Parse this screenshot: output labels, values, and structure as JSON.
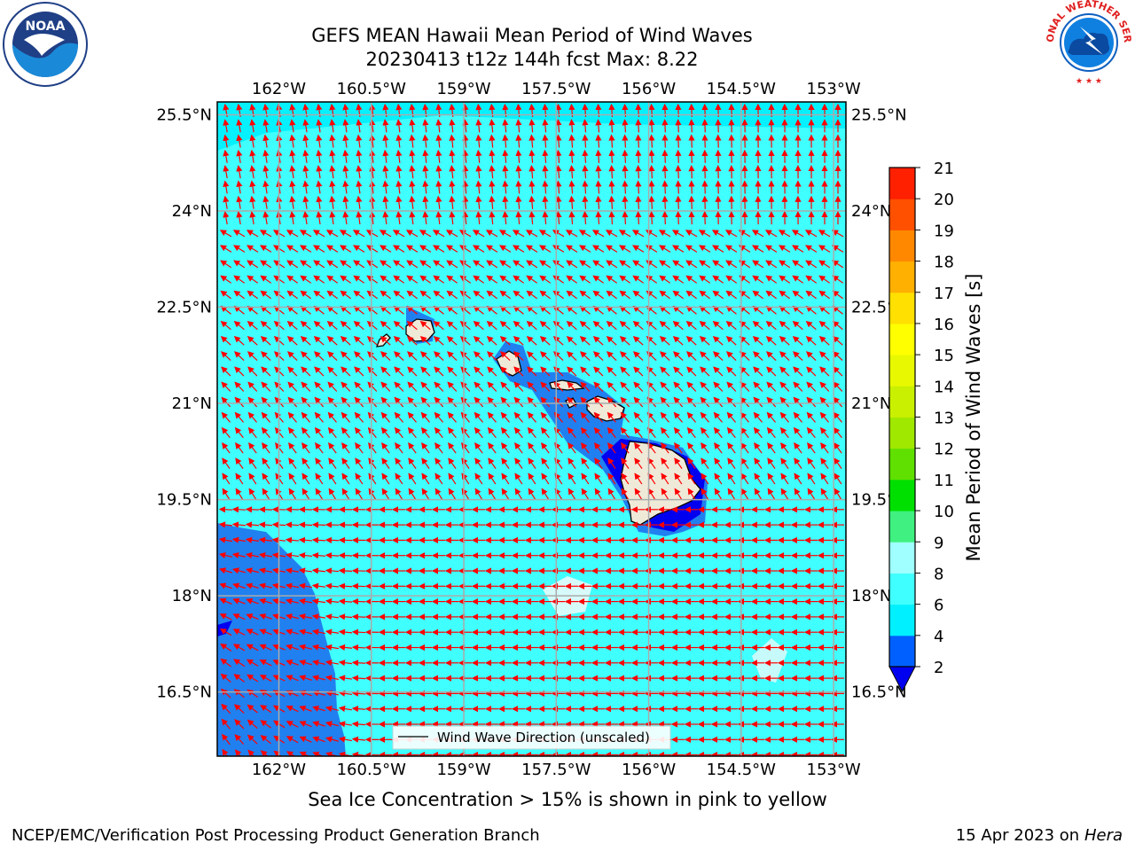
{
  "title_line1": "GEFS MEAN Hawaii Mean Period of Wind Waves",
  "title_line2": "20230413 t12z 144h fcst   Max: 8.22",
  "subtitle": "Sea Ice Concentration > 15% is shown in pink to yellow",
  "footer_left": "NCEP/EMC/Verification Post Processing Product Generation Branch",
  "footer_right_date": "15 Apr 2023 on ",
  "footer_right_host": "Hera",
  "legend_label": "Wind Wave Direction (unscaled)",
  "colorbar_label": "Mean Period of Wind Waves [s]",
  "logos": {
    "left": "NOAA",
    "left_ring_text": "NATIONAL OCEANIC AND ATMOSPHERIC ADMINISTRATION · U.S. DEPARTMENT OF COMMERCE",
    "right_ring_text": "NATIONAL WEATHER SERVICE"
  },
  "map": {
    "lon_labels": [
      "162°W",
      "160.5°W",
      "159°W",
      "157.5°W",
      "156°W",
      "154.5°W",
      "153°W"
    ],
    "lat_labels": [
      "25.5°N",
      "24°N",
      "22.5°N",
      "21°N",
      "19.5°N",
      "18°N",
      "16.5°N"
    ],
    "lon_range": [
      -163,
      -152.8
    ],
    "lat_range": [
      15.5,
      25.7
    ]
  },
  "colorbar": {
    "ticks": [
      2,
      4,
      6,
      8,
      9,
      10,
      11,
      12,
      13,
      14,
      15,
      16,
      17,
      18,
      19,
      20,
      21
    ],
    "colors": [
      "#0060ff",
      "#00f0ff",
      "#40ffff",
      "#a0ffff",
      "#40f080",
      "#00e000",
      "#60e000",
      "#a0e800",
      "#c8f000",
      "#e8f800",
      "#ffff00",
      "#ffe000",
      "#ffb000",
      "#ff8800",
      "#ff5000",
      "#ff2000",
      "#ff0000"
    ],
    "extend_color": "#0000f0"
  },
  "colors": {
    "ocean_main": "#40ffff",
    "ocean_low": "#00f0ff",
    "ocean_deep": "#2080f0",
    "ocean_dark": "#0000f0",
    "land": "#efe9d8",
    "arrow": "#ff0000",
    "grid": "#aaaaaa"
  }
}
